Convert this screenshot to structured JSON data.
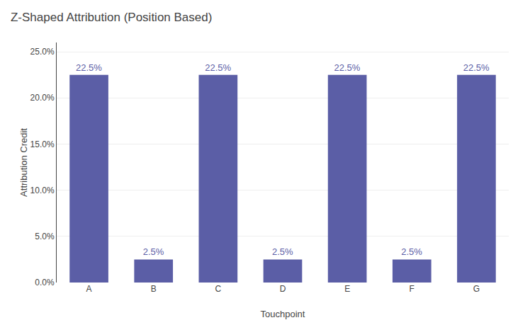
{
  "chart_data": {
    "type": "bar",
    "title": "Z-Shaped Attribution (Position Based)",
    "xlabel": "Touchpoint",
    "ylabel": "Attribution Credit",
    "categories": [
      "A",
      "B",
      "C",
      "D",
      "E",
      "F",
      "G"
    ],
    "values": [
      22.5,
      2.5,
      22.5,
      2.5,
      22.5,
      2.5,
      22.5
    ],
    "value_labels": [
      "22.5%",
      "2.5%",
      "22.5%",
      "2.5%",
      "22.5%",
      "2.5%",
      "22.5%"
    ],
    "data_labels": true,
    "color": "#5b5ea6",
    "ylim": [
      0,
      26
    ],
    "yticks": [
      {
        "value": 0.0,
        "label": "0.0%"
      },
      {
        "value": 5.0,
        "label": "5.0%"
      },
      {
        "value": 10.0,
        "label": "10.0%"
      },
      {
        "value": 15.0,
        "label": "15.0%"
      },
      {
        "value": 20.0,
        "label": "20.0%"
      },
      {
        "value": 25.0,
        "label": "25.0%"
      }
    ],
    "grid": true
  }
}
